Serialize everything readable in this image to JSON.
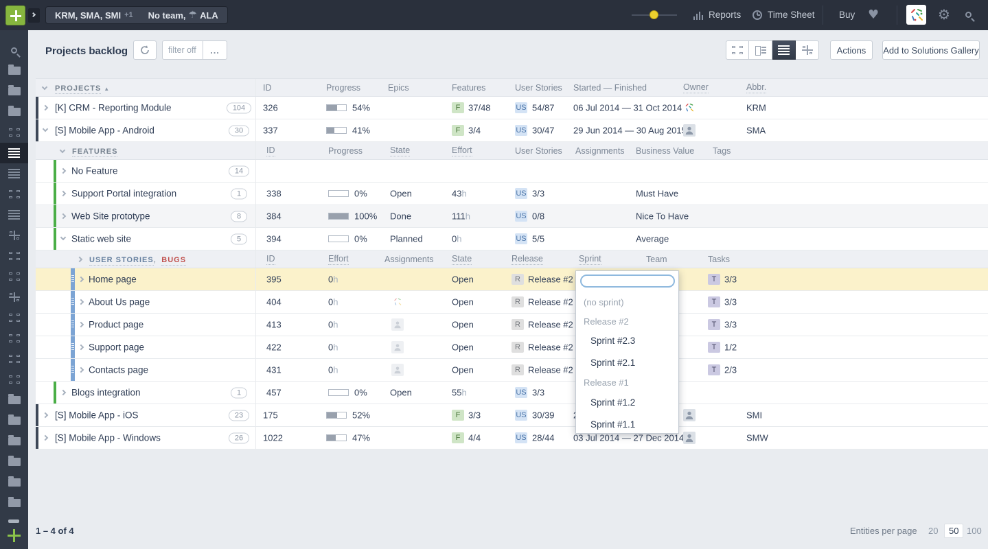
{
  "topbar": {
    "projects_tab": "KRM, SMA, SMI",
    "projects_more": "+1",
    "team_tab": "No team,",
    "team_abbr": "ALA",
    "reports": "Reports",
    "time_sheet": "Time Sheet",
    "buy": "Buy"
  },
  "toolbar": {
    "title": "Projects backlog",
    "filter_placeholder": "filter off",
    "more": "...",
    "actions": "Actions",
    "add_gallery": "Add to Solutions Gallery"
  },
  "headers": {
    "projects": {
      "label": "PROJECTS",
      "cols": [
        "ID",
        "Progress",
        "Epics",
        "Features",
        "User Stories",
        "Started — Finished",
        "Owner",
        "Abbr."
      ]
    },
    "features": {
      "label": "FEATURES",
      "cols": [
        "ID",
        "Progress",
        "State",
        "Effort",
        "User Stories",
        "Assignments",
        "Business Value",
        "Tags"
      ]
    },
    "stories": {
      "label": "USER STORIES",
      "comma": ",",
      "label2": "BUGS",
      "cols": [
        "ID",
        "Effort",
        "Assignments",
        "State",
        "Release",
        "Sprint",
        "Team",
        "Tasks"
      ]
    }
  },
  "badges": {
    "feature": "F",
    "story": "US",
    "release": "R",
    "task": "T"
  },
  "units": {
    "hour": "h"
  },
  "rows": {
    "crm": {
      "name": "[K] CRM - Reporting Module",
      "count": "104",
      "id": "326",
      "progress_pct": 54,
      "progress_label": "54%",
      "features": "37/48",
      "us": "54/87",
      "dates": "06 Jul 2014 — 31 Oct 2014",
      "abbr": "KRM"
    },
    "android": {
      "name": "[S] Mobile App - Android",
      "count": "30",
      "id": "337",
      "progress_pct": 41,
      "progress_label": "41%",
      "features": "3/4",
      "us": "30/47",
      "dates": "29 Jun 2014 — 30 Aug 2015",
      "abbr": "SMA"
    },
    "no_feature": {
      "name": "No Feature",
      "count": "14"
    },
    "support_portal": {
      "name": "Support Portal integration",
      "count": "1",
      "id": "338",
      "progress_pct": 0,
      "progress_label": "0%",
      "state": "Open",
      "effort": "43",
      "us": "3/3",
      "business_value": "Must Have"
    },
    "web_site": {
      "name": "Web Site prototype",
      "count": "8",
      "id": "384",
      "progress_pct": 100,
      "progress_label": "100%",
      "state": "Done",
      "effort": "111",
      "us": "0/8",
      "business_value": "Nice To Have"
    },
    "static_web": {
      "name": "Static web site",
      "count": "5",
      "id": "394",
      "progress_pct": 0,
      "progress_label": "0%",
      "state": "Planned",
      "effort": "0",
      "us": "5/5",
      "business_value": "Average"
    },
    "home": {
      "name": "Home page",
      "id": "395",
      "effort": "0",
      "state": "Open",
      "release": "Release #2",
      "tasks": "3/3"
    },
    "about": {
      "name": "About Us page",
      "id": "404",
      "effort": "0",
      "state": "Open",
      "release": "Release #2",
      "tasks": "3/3"
    },
    "product": {
      "name": "Product page",
      "id": "413",
      "effort": "0",
      "state": "Open",
      "release": "Release #2",
      "tasks": "3/3"
    },
    "support": {
      "name": "Support page",
      "id": "422",
      "effort": "0",
      "state": "Open",
      "release": "Release #2",
      "tasks": "1/2"
    },
    "contacts": {
      "name": "Contacts page",
      "id": "431",
      "effort": "0",
      "state": "Open",
      "release": "Release #2",
      "tasks": "2/3"
    },
    "blogs": {
      "name": "Blogs integration",
      "count": "1",
      "id": "457",
      "progress_pct": 0,
      "progress_label": "0%",
      "state": "Open",
      "effort": "55",
      "us": "3/3"
    },
    "ios": {
      "name": "[S] Mobile App - iOS",
      "count": "23",
      "id": "175",
      "progress_pct": 52,
      "progress_label": "52%",
      "features": "3/3",
      "us": "30/39",
      "dates": "2",
      "abbr": "SMI"
    },
    "windows": {
      "name": "[S] Mobile App - Windows",
      "count": "26",
      "id": "1022",
      "progress_pct": 47,
      "progress_label": "47%",
      "features": "4/4",
      "us": "28/44",
      "dates": "03 Jul 2014 — 27 Dec 2014",
      "abbr": "SMW"
    }
  },
  "dropdown": {
    "input_value": "",
    "items": [
      "(no sprint)",
      "Release #2",
      "Sprint #2.3",
      "Sprint #2.1",
      "Release #1",
      "Sprint #1.2",
      "Sprint #1.1"
    ]
  },
  "footer": {
    "range": "1 – 4 of 4",
    "entities_label": "Entities per page",
    "options": [
      "20",
      "50",
      "100"
    ],
    "selected": "50"
  },
  "icons": {
    "topbar": [
      "plus-icon",
      "chevron-right-icon",
      "umbrella-icon",
      "brightness-toggle-knob",
      "bar-chart-icon",
      "clock-icon",
      "heart-icon",
      "user-avatar",
      "gear-icon",
      "search-icon"
    ],
    "toolbar": [
      "refresh-icon",
      "ellipsis-icon",
      "view-board-icon",
      "view-detail-list-icon",
      "view-list-icon",
      "view-timeline-icon"
    ],
    "sidebar": [
      "search-icon",
      "folder-icon",
      "folder-icon",
      "folder-icon",
      "board-icon",
      "list-icon",
      "list-icon",
      "board-icon",
      "list-icon",
      "timeline-icon",
      "board-icon",
      "board-icon",
      "timeline-icon",
      "board-icon",
      "board-icon",
      "board-icon",
      "board-icon",
      "folder-icon",
      "folder-icon",
      "folder-icon",
      "folder-icon",
      "folder-icon",
      "folder-icon",
      "dash-icon",
      "plus-icon"
    ],
    "table": [
      "chevron-expander",
      "avatar-confetti",
      "avatar-person",
      "drag-handle"
    ]
  }
}
